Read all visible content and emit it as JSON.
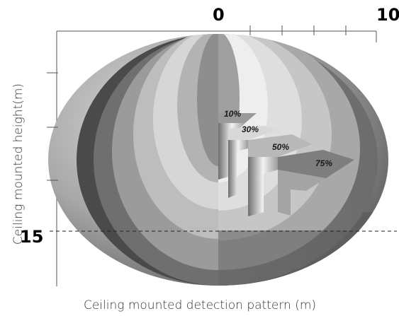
{
  "axis": {
    "top_left_tick": "0",
    "top_right_tick": "10",
    "left_tick": "15",
    "x_title": "Ceiling mounted detection pattern (m)",
    "y_title": "Ceiling mounted height(m)"
  },
  "zones": [
    {
      "label": "10%",
      "color": "#9a9a9a"
    },
    {
      "label": "30%",
      "color": "#d8d8d8"
    },
    {
      "label": "50%",
      "color": "#b8b8b8"
    },
    {
      "label": "75%",
      "color": "#7e7e7e"
    }
  ]
}
